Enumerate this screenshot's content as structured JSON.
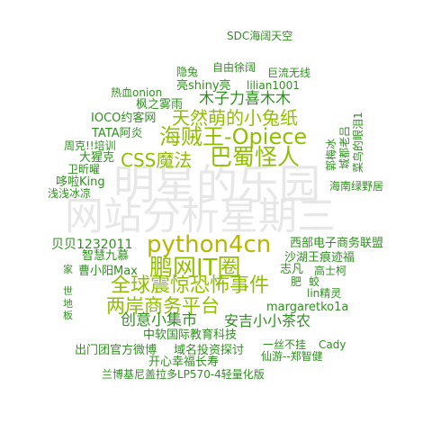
{
  "watermark": {
    "line1": "明星的乐园",
    "line2": "网站分析星期三",
    "color": "#e3e3e3"
  },
  "colors": {
    "green": "#22aa22",
    "dark_green": "#2f8f1f",
    "yellow_green": "#8fbf00",
    "olive": "#b7b700"
  },
  "words": [
    "SDC海阔天空",
    "隐兔",
    "自由徐阔",
    "巨流无线",
    "亮shiny亮",
    "lilian1001",
    "热血onion",
    "枫之雾雨",
    "木子力喜木木",
    "IOCO约客网",
    "天然萌的小兔纸",
    "TATA阿炎",
    "海贼王-Opiece",
    "周克!!培训",
    "CSS魔法",
    "巴蜀怪人",
    "大猩克",
    "卫昕曜",
    "哆啦King",
    "浅浅冰凉",
    "海南绿野居",
    "郭梅冰",
    "城都老吕",
    "菜鸟的眼泪1",
    "python4cn",
    "贝贝1232011",
    "西部电子商务联盟",
    "智慧九慕",
    "沙湖王痕迹福",
    "鹏网IT圈",
    "曹小阳Max",
    "志凡",
    "高士柯",
    "全球震惊恐怖事件",
    "肥",
    "蛟",
    "lin精灵",
    "两岸商务平台",
    "margaretko1a",
    "创意小集市",
    "安吉小小茶农",
    "中软国际教育科技",
    "一丝不挂",
    "Cady",
    "出门团官方微博",
    "域名投资探讨",
    "仙游--郑智健",
    "开心幸福长寿",
    "兰博基尼盖拉多LP570-4轻量化版",
    "地",
    "板",
    "世",
    "家"
  ]
}
